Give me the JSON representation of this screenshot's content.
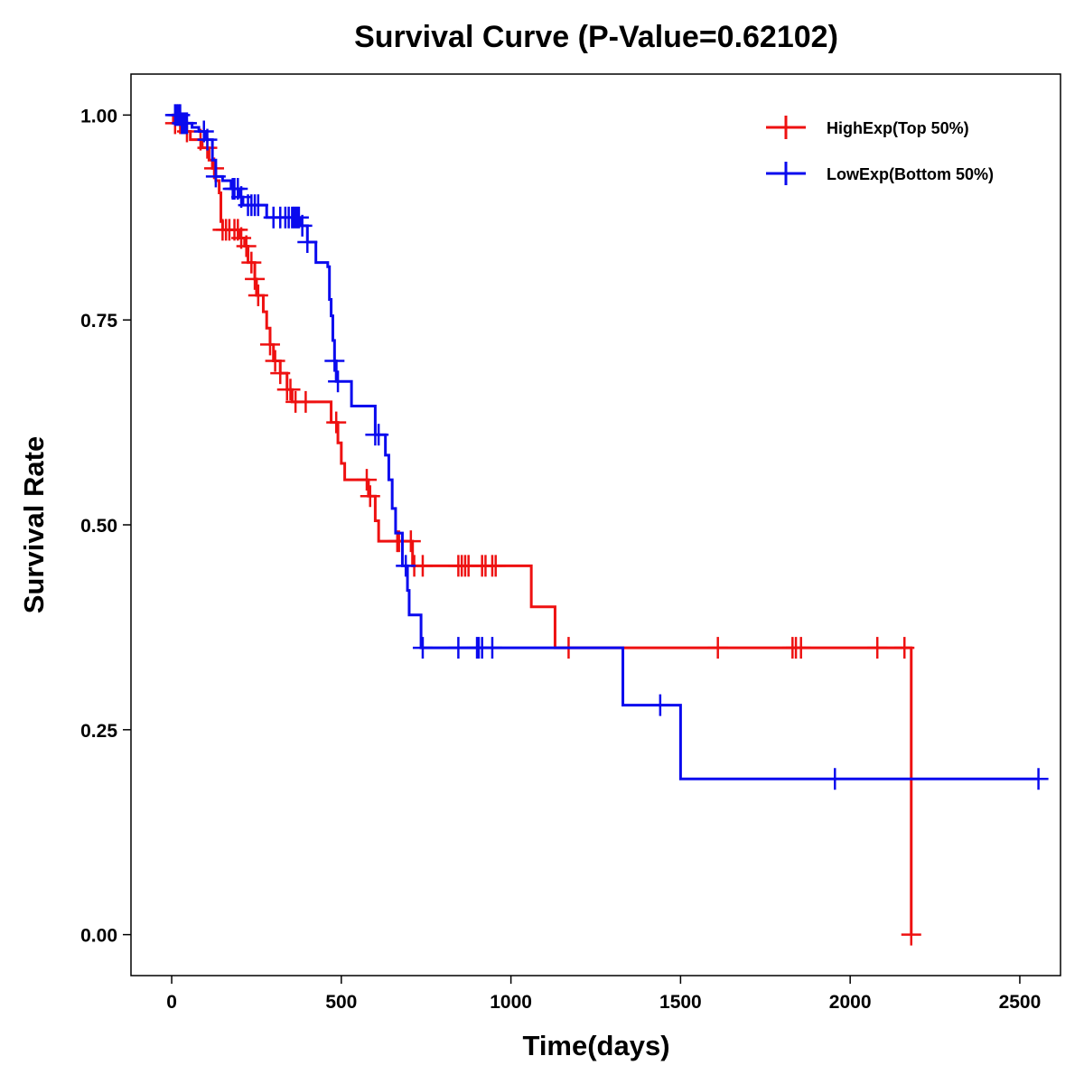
{
  "chart_data": {
    "type": "line",
    "subtype": "kaplan-meier step",
    "title": "Survival Curve (P-Value=0.62102)",
    "xlabel": "Time(days)",
    "ylabel": "Survival Rate",
    "xlim": [
      -120,
      2620
    ],
    "ylim": [
      -0.05,
      1.05
    ],
    "xticks": [
      0,
      500,
      1000,
      1500,
      2000,
      2500
    ],
    "xtick_labels": [
      "0",
      "500",
      "1000",
      "1500",
      "2000",
      "2500"
    ],
    "yticks": [
      0,
      0.25,
      0.5,
      0.75,
      1.0
    ],
    "ytick_labels": [
      "0.00",
      "0.25",
      "0.50",
      "0.75",
      "1.00"
    ],
    "grid": false,
    "legend_position": "top-right",
    "series": [
      {
        "name": "HighExp(Top 50%)",
        "color": "#EE1111",
        "steps": [
          [
            0,
            1.0
          ],
          [
            5,
            0.99
          ],
          [
            30,
            0.98
          ],
          [
            55,
            0.97
          ],
          [
            90,
            0.96
          ],
          [
            110,
            0.945
          ],
          [
            120,
            0.935
          ],
          [
            130,
            0.92
          ],
          [
            140,
            0.905
          ],
          [
            145,
            0.87
          ],
          [
            150,
            0.86
          ],
          [
            200,
            0.85
          ],
          [
            215,
            0.84
          ],
          [
            225,
            0.82
          ],
          [
            245,
            0.8
          ],
          [
            250,
            0.78
          ],
          [
            270,
            0.76
          ],
          [
            280,
            0.74
          ],
          [
            290,
            0.72
          ],
          [
            300,
            0.7
          ],
          [
            320,
            0.685
          ],
          [
            340,
            0.665
          ],
          [
            355,
            0.65
          ],
          [
            440,
            0.65
          ],
          [
            470,
            0.625
          ],
          [
            490,
            0.6
          ],
          [
            500,
            0.575
          ],
          [
            510,
            0.555
          ],
          [
            560,
            0.555
          ],
          [
            580,
            0.535
          ],
          [
            600,
            0.505
          ],
          [
            610,
            0.48
          ],
          [
            710,
            0.45
          ],
          [
            1060,
            0.45
          ],
          [
            1060,
            0.4
          ],
          [
            1130,
            0.4
          ],
          [
            1130,
            0.35
          ],
          [
            2180,
            0.35
          ],
          [
            2180,
            0.0
          ]
        ],
        "censor_times": [
          10,
          25,
          45,
          85,
          105,
          125,
          150,
          160,
          170,
          185,
          195,
          205,
          220,
          235,
          245,
          255,
          290,
          305,
          320,
          340,
          350,
          365,
          395,
          485,
          575,
          585,
          665,
          670,
          705,
          715,
          740,
          845,
          855,
          865,
          875,
          915,
          925,
          945,
          955,
          1170,
          1610,
          1830,
          1840,
          1855,
          2080,
          2160,
          2180
        ]
      },
      {
        "name": "LowExp(Bottom 50%)",
        "color": "#0A0AEE",
        "steps": [
          [
            0,
            1.0
          ],
          [
            30,
            0.99
          ],
          [
            60,
            0.985
          ],
          [
            80,
            0.98
          ],
          [
            100,
            0.97
          ],
          [
            120,
            0.945
          ],
          [
            130,
            0.925
          ],
          [
            150,
            0.92
          ],
          [
            175,
            0.91
          ],
          [
            200,
            0.9
          ],
          [
            210,
            0.89
          ],
          [
            270,
            0.89
          ],
          [
            280,
            0.875
          ],
          [
            320,
            0.875
          ],
          [
            360,
            0.875
          ],
          [
            380,
            0.865
          ],
          [
            400,
            0.845
          ],
          [
            425,
            0.82
          ],
          [
            460,
            0.815
          ],
          [
            465,
            0.775
          ],
          [
            470,
            0.755
          ],
          [
            475,
            0.725
          ],
          [
            480,
            0.7
          ],
          [
            485,
            0.675
          ],
          [
            530,
            0.645
          ],
          [
            600,
            0.61
          ],
          [
            630,
            0.585
          ],
          [
            640,
            0.555
          ],
          [
            650,
            0.52
          ],
          [
            660,
            0.49
          ],
          [
            680,
            0.45
          ],
          [
            695,
            0.42
          ],
          [
            700,
            0.39
          ],
          [
            735,
            0.35
          ],
          [
            1330,
            0.35
          ],
          [
            1330,
            0.28
          ],
          [
            1500,
            0.28
          ],
          [
            1500,
            0.19
          ],
          [
            2555,
            0.19
          ]
        ],
        "censor_times": [
          10,
          15,
          20,
          25,
          30,
          35,
          40,
          45,
          95,
          105,
          130,
          180,
          185,
          195,
          205,
          225,
          235,
          245,
          255,
          300,
          320,
          335,
          345,
          355,
          360,
          365,
          370,
          375,
          385,
          400,
          480,
          490,
          600,
          610,
          690,
          740,
          845,
          900,
          905,
          915,
          945,
          1440,
          1955,
          2555
        ]
      }
    ]
  }
}
